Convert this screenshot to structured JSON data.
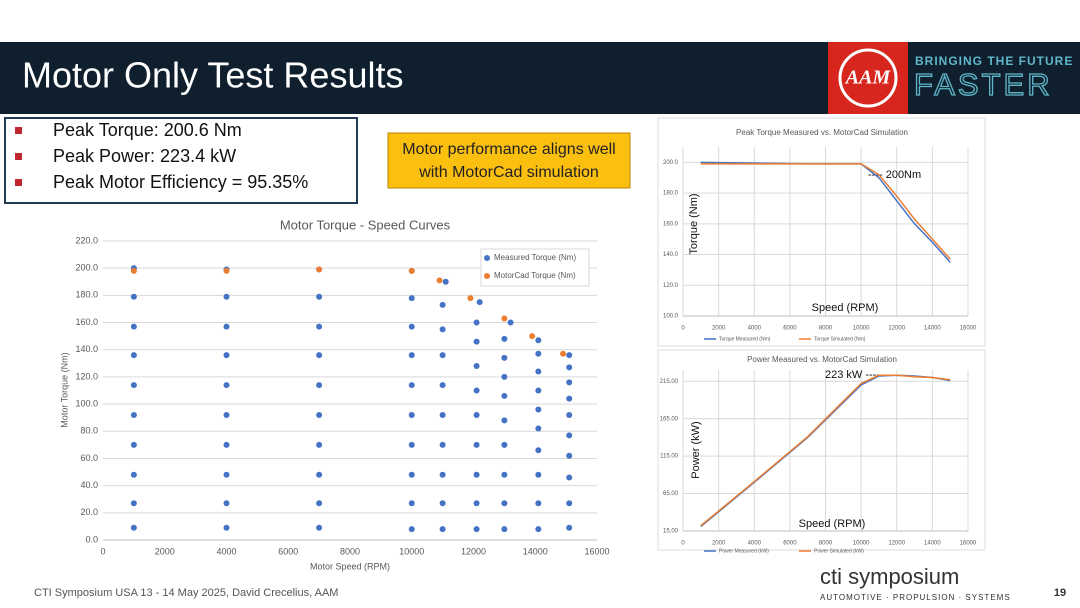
{
  "header": {
    "title": "Motor Only Test Results",
    "logo": "AAM",
    "tagline": "BRINGING THE FUTURE",
    "tagline_big": "FASTER"
  },
  "bullets": [
    "Peak Torque: 200.6 Nm",
    "Peak Power: 223.4 kW",
    "Peak Motor Efficiency = 95.35%"
  ],
  "callout": {
    "lines": [
      "Motor performance aligns well",
      "with MotorCad simulation"
    ]
  },
  "footer": {
    "text": "CTI Symposium USA 13 - 14 May 2025, David Crecelius, AAM",
    "page": "19",
    "brand": "cti symposium",
    "brand_sub": "AUTOMOTIVE · PROPULSION · SYSTEMS"
  },
  "chart_data": [
    {
      "type": "scatter",
      "title": "Motor Torque - Speed Curves",
      "x_label": "Motor Speed (RPM)",
      "y_label": "Motor Torque (Nm)",
      "xlim": [
        0,
        16000
      ],
      "xticks": [
        0,
        2000,
        4000,
        6000,
        8000,
        10000,
        12000,
        14000,
        16000
      ],
      "ylim": [
        0,
        220
      ],
      "yticks": [
        {
          "value": 0,
          "label": "0.0"
        },
        {
          "value": 20,
          "label": "20.0"
        },
        {
          "value": 40,
          "label": "40.0"
        },
        {
          "value": 60,
          "label": "60.0"
        },
        {
          "value": 80,
          "label": "80.0"
        },
        {
          "value": 100,
          "label": "100.0"
        },
        {
          "value": 120,
          "label": "120.0"
        },
        {
          "value": 140,
          "label": "140.0"
        },
        {
          "value": 160,
          "label": "160.0"
        },
        {
          "value": 180,
          "label": "180.0"
        },
        {
          "value": 200,
          "label": "200.0"
        },
        {
          "value": 220,
          "label": "220.0"
        }
      ],
      "grid": true,
      "legend": "top-right",
      "series": [
        {
          "name": "Measured Torque (Nm)",
          "color": "#4472c4",
          "x": [
            1000,
            1000,
            1000,
            1000,
            1000,
            1000,
            1000,
            1000,
            1000,
            1000,
            4000,
            4000,
            4000,
            4000,
            4000,
            4000,
            4000,
            4000,
            4000,
            4000,
            7000,
            7000,
            7000,
            7000,
            7000,
            7000,
            7000,
            7000,
            7000,
            7000,
            10000,
            10000,
            10000,
            10000,
            10000,
            10000,
            10000,
            10000,
            10000,
            10000,
            11100,
            11000,
            11000,
            11000,
            11000,
            11000,
            11000,
            11000,
            11000,
            11000,
            12200,
            12100,
            12100,
            12100,
            12100,
            12100,
            12100,
            12100,
            12100,
            12100,
            13200,
            13000,
            13000,
            13000,
            13000,
            13000,
            13000,
            13000,
            13000,
            13000,
            14100,
            14100,
            14100,
            14100,
            14100,
            14100,
            14100,
            14100,
            14100,
            14100,
            15100,
            15100,
            15100,
            15100,
            15100,
            15100,
            15100,
            15100,
            15100,
            15100
          ],
          "values": [
            200,
            179,
            157,
            136,
            114,
            92,
            70,
            48,
            27,
            9,
            199,
            179,
            157,
            136,
            114,
            92,
            70,
            48,
            27,
            9,
            199,
            179,
            157,
            136,
            114,
            92,
            70,
            48,
            27,
            9,
            198,
            178,
            157,
            136,
            114,
            92,
            70,
            48,
            27,
            8,
            190,
            173,
            155,
            136,
            114,
            92,
            70,
            48,
            27,
            8,
            175,
            160,
            146,
            128,
            110,
            92,
            70,
            48,
            27,
            8,
            160,
            148,
            134,
            120,
            106,
            88,
            70,
            48,
            27,
            8,
            147,
            137,
            124,
            110,
            96,
            82,
            66,
            48,
            27,
            8,
            136,
            127,
            116,
            104,
            92,
            77,
            62,
            46,
            27,
            9
          ]
        },
        {
          "name": "MotorCad Torque (Nm)",
          "color": "#ed7d31",
          "x": [
            1000,
            4000,
            7000,
            10000,
            10900,
            11900,
            13000,
            13900,
            14900
          ],
          "values": [
            198,
            198,
            199,
            198,
            191,
            178,
            163,
            150,
            137
          ]
        }
      ]
    },
    {
      "type": "line",
      "title": "Peak Torque Measured vs. MotorCad Simulation",
      "x_label": "Speed (RPM)",
      "y_label": "Torque (Nm)",
      "annotation": "---- 200Nm",
      "xlim": [
        0,
        16000
      ],
      "xticks": [
        0,
        2000,
        4000,
        6000,
        8000,
        10000,
        12000,
        14000,
        16000
      ],
      "ylim": [
        100,
        210
      ],
      "yticks": [
        {
          "value": 100,
          "label": "100.0"
        },
        {
          "value": 120,
          "label": "120.0"
        },
        {
          "value": 140,
          "label": "140.0"
        },
        {
          "value": 160,
          "label": "160.0"
        },
        {
          "value": 180,
          "label": "180.0"
        },
        {
          "value": 200,
          "label": "200.0"
        }
      ],
      "grid": true,
      "legend": "bottom",
      "series": [
        {
          "name": "Torque Measured (Nm)",
          "color": "#4472c4",
          "x": [
            1000,
            4000,
            7000,
            10000,
            11000,
            12000,
            13000,
            14000,
            15000
          ],
          "values": [
            200,
            199.5,
            199,
            199,
            190,
            175,
            160,
            148,
            135
          ]
        },
        {
          "name": "Torque Simulated (Nm)",
          "color": "#ed7d31",
          "x": [
            1000,
            4000,
            7000,
            10000,
            11000,
            12000,
            13000,
            14000,
            15000
          ],
          "values": [
            199,
            199,
            199,
            199,
            192,
            178,
            163,
            150,
            137
          ]
        }
      ]
    },
    {
      "type": "line",
      "title": "Power Measured vs. MotorCad Simulation",
      "x_label": "Speed (RPM)",
      "y_label": "Power (kW)",
      "annotation": "223 kW ----",
      "xlim": [
        0,
        16000
      ],
      "xticks": [
        0,
        2000,
        4000,
        6000,
        8000,
        10000,
        12000,
        14000,
        16000
      ],
      "ylim": [
        15,
        230
      ],
      "yticks": [
        {
          "value": 15,
          "label": "15.00"
        },
        {
          "value": 65,
          "label": "65.00"
        },
        {
          "value": 115,
          "label": "115.00"
        },
        {
          "value": 165,
          "label": "165.00"
        },
        {
          "value": 215,
          "label": "215.00"
        }
      ],
      "grid": true,
      "legend": "bottom",
      "series": [
        {
          "name": "Power Measured (kW)",
          "color": "#4472c4",
          "x": [
            1000,
            4000,
            7000,
            10000,
            11000,
            12000,
            13000,
            14000,
            15000
          ],
          "values": [
            21,
            80,
            140,
            210,
            222,
            223,
            222,
            220,
            216
          ]
        },
        {
          "name": "Power Simulated (kW)",
          "color": "#ed7d31",
          "x": [
            1000,
            4000,
            7000,
            10000,
            11000,
            12000,
            13000,
            14000,
            15000
          ],
          "values": [
            22,
            81,
            141,
            212,
            223,
            223,
            221,
            220,
            217
          ]
        }
      ]
    }
  ]
}
